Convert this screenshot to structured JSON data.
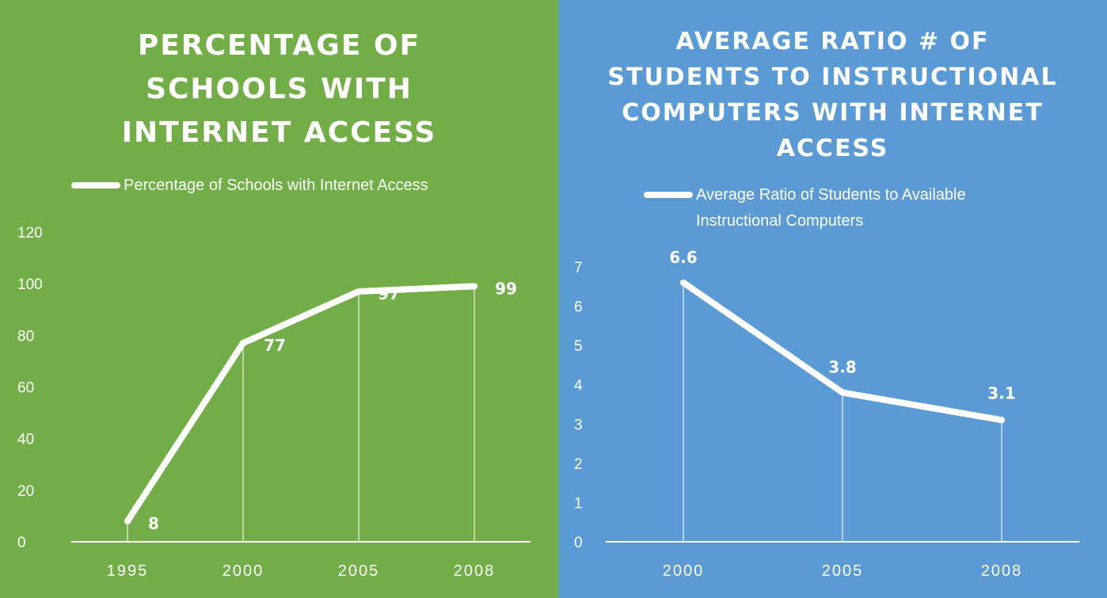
{
  "colors": {
    "left_background": "#72ad47",
    "right_background": "#5b9bd5",
    "line": "#ffffff"
  },
  "chart_data": [
    {
      "type": "line",
      "title": "PERCENTAGE OF SCHOOLS WITH INTERNET ACCESS",
      "title_lines": [
        "PERCENTAGE OF",
        "SCHOOLS WITH",
        "INTERNET ACCESS"
      ],
      "categories": [
        "1995",
        "2000",
        "2005",
        "2008"
      ],
      "series": [
        {
          "name": "Percentage of Schools with Internet Access",
          "values": [
            8,
            77,
            97,
            99
          ]
        }
      ],
      "y_ticks": [
        "0",
        "20",
        "40",
        "60",
        "80",
        "100",
        "120"
      ],
      "ylim": [
        0,
        120
      ],
      "grid": false,
      "drop_lines": true,
      "legend": "top-left",
      "data_labels": [
        "8",
        "77",
        "97",
        "99"
      ]
    },
    {
      "type": "line",
      "title": "AVERAGE RATIO # OF STUDENTS TO INSTRUCTIONAL COMPUTERS WITH INTERNET ACCESS",
      "title_lines": [
        "AVERAGE RATIO # OF",
        "STUDENTS TO INSTRUCTIONAL",
        "COMPUTERS WITH INTERNET",
        "ACCESS"
      ],
      "categories": [
        "2000",
        "2005",
        "2008"
      ],
      "series": [
        {
          "name": "Average Ratio of Students to Available Instructional Computers",
          "values": [
            6.6,
            3.8,
            3.1
          ]
        }
      ],
      "y_ticks": [
        "0",
        "1",
        "2",
        "3",
        "4",
        "5",
        "6",
        "7"
      ],
      "ylim": [
        0,
        7
      ],
      "grid": false,
      "drop_lines": true,
      "legend": "top-left",
      "data_labels": [
        "6.6",
        "3.8",
        "3.1"
      ]
    }
  ]
}
